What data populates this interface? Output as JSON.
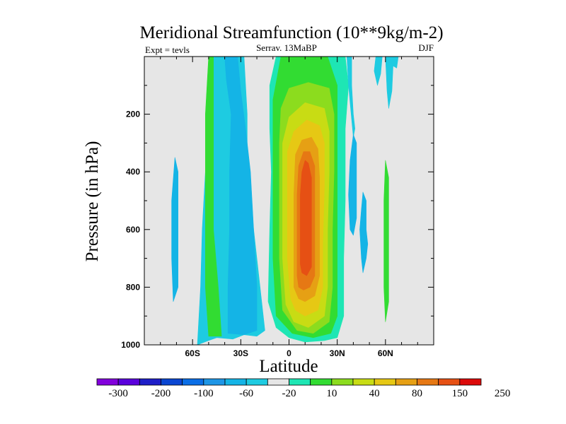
{
  "chart_data": {
    "type": "filled-contour",
    "title": "Meridional Streamfunction (10**9kg/m-2)",
    "subtitle_left": "Expt = tevls",
    "subtitle_center": "Serrav.  13MaBP",
    "subtitle_right": "DJF",
    "xlabel": "Latitude",
    "ylabel": "Pressure (in hPa)",
    "xlim": [
      -90,
      90
    ],
    "ylim": [
      1000,
      0
    ],
    "xticks": [
      {
        "value": -60,
        "label": "60S"
      },
      {
        "value": -30,
        "label": "30S"
      },
      {
        "value": 0,
        "label": "0"
      },
      {
        "value": 30,
        "label": "30N"
      },
      {
        "value": 60,
        "label": "60N"
      }
    ],
    "yticks": [
      {
        "value": 200,
        "label": "200"
      },
      {
        "value": 400,
        "label": "400"
      },
      {
        "value": 600,
        "label": "600"
      },
      {
        "value": 800,
        "label": "800"
      },
      {
        "value": 1000,
        "label": "1000"
      }
    ],
    "background_color": "#e6e6e6",
    "colorbar": {
      "labels": [
        "-300",
        "-200",
        "-100",
        "-60",
        "-20",
        "10",
        "40",
        "80",
        "150",
        "250"
      ],
      "colors": [
        "#8200dc",
        "#5a00dc",
        "#1e1ec8",
        "#0a46d2",
        "#0a6ee6",
        "#1e96e6",
        "#14b4e6",
        "#1ecbe1",
        "#e6e6e6",
        "#1ee6b4",
        "#32dc32",
        "#8cdc1e",
        "#c8dc14",
        "#e6c814",
        "#e6a014",
        "#e67814",
        "#e65014",
        "#dc0a0a"
      ]
    },
    "contours": [
      {
        "name": "ssh-cyan-cell",
        "color": "#1ecbe1",
        "points": [
          [
            -57,
            1000
          ],
          [
            -55,
            800
          ],
          [
            -54,
            600
          ],
          [
            -52,
            400
          ],
          [
            -50,
            200
          ],
          [
            -50,
            0
          ],
          [
            -28,
            0
          ],
          [
            -26,
            200
          ],
          [
            -26,
            400
          ],
          [
            -22,
            600
          ],
          [
            -18,
            800
          ],
          [
            -15,
            950
          ],
          [
            -20,
            970
          ],
          [
            -28,
            965
          ],
          [
            -35,
            980
          ],
          [
            -45,
            975
          ],
          [
            -50,
            985
          ]
        ]
      },
      {
        "name": "ssh-blue-cell",
        "color": "#14b4e6",
        "points": [
          [
            -38,
            960
          ],
          [
            -38,
            800
          ],
          [
            -37,
            600
          ],
          [
            -37,
            400
          ],
          [
            -36,
            200
          ],
          [
            -39,
            80
          ],
          [
            -40,
            0
          ],
          [
            -32,
            0
          ],
          [
            -30,
            120
          ],
          [
            -27,
            250
          ],
          [
            -24,
            400
          ],
          [
            -22,
            600
          ],
          [
            -20,
            800
          ],
          [
            -20,
            950
          ],
          [
            -28,
            965
          ]
        ]
      },
      {
        "name": "sh-green-band",
        "color": "#32dc32",
        "points": [
          [
            -50,
            970
          ],
          [
            -52,
            800
          ],
          [
            -52,
            600
          ],
          [
            -52,
            400
          ],
          [
            -52,
            200
          ],
          [
            -50,
            0
          ],
          [
            -47,
            0
          ],
          [
            -47,
            200
          ],
          [
            -47,
            400
          ],
          [
            -47,
            600
          ],
          [
            -44,
            800
          ],
          [
            -42,
            970
          ]
        ]
      },
      {
        "name": "sh-cyan-sliver",
        "color": "#14b4e6",
        "points": [
          [
            -72,
            850
          ],
          [
            -73,
            700
          ],
          [
            -73,
            500
          ],
          [
            -71,
            350
          ],
          [
            -69,
            400
          ],
          [
            -69,
            600
          ],
          [
            -69,
            800
          ]
        ]
      },
      {
        "name": "hadley-10",
        "color": "#1ee6b4",
        "points": [
          [
            -13,
            850
          ],
          [
            -12,
            600
          ],
          [
            -11,
            400
          ],
          [
            -12,
            250
          ],
          [
            -12,
            100
          ],
          [
            -8,
            0
          ],
          [
            35,
            0
          ],
          [
            37,
            100
          ],
          [
            35,
            250
          ],
          [
            35,
            500
          ],
          [
            34,
            700
          ],
          [
            34,
            900
          ],
          [
            30,
            975
          ],
          [
            22,
            985
          ],
          [
            10,
            990
          ],
          [
            0,
            975
          ],
          [
            -8,
            940
          ]
        ]
      },
      {
        "name": "hadley-40",
        "color": "#32dc32",
        "points": [
          [
            -8,
            900
          ],
          [
            -10,
            700
          ],
          [
            -10,
            500
          ],
          [
            -10,
            300
          ],
          [
            -10,
            150
          ],
          [
            -5,
            0
          ],
          [
            24,
            0
          ],
          [
            30,
            100
          ],
          [
            30,
            300
          ],
          [
            30,
            500
          ],
          [
            30,
            700
          ],
          [
            30,
            900
          ],
          [
            26,
            960
          ],
          [
            15,
            975
          ],
          [
            2,
            960
          ]
        ]
      },
      {
        "name": "hadley-80",
        "color": "#8cdc1e",
        "points": [
          [
            -4,
            880
          ],
          [
            -6,
            700
          ],
          [
            -6,
            500
          ],
          [
            -6,
            300
          ],
          [
            -5,
            180
          ],
          [
            0,
            110
          ],
          [
            12,
            90
          ],
          [
            25,
            110
          ],
          [
            28,
            200
          ],
          [
            28,
            400
          ],
          [
            27,
            600
          ],
          [
            27,
            800
          ],
          [
            25,
            920
          ],
          [
            15,
            960
          ],
          [
            5,
            950
          ]
        ]
      },
      {
        "name": "hadley-120",
        "color": "#c8dc14",
        "points": [
          [
            -2,
            860
          ],
          [
            -4,
            700
          ],
          [
            -4,
            500
          ],
          [
            -4,
            300
          ],
          [
            0,
            210
          ],
          [
            10,
            160
          ],
          [
            22,
            180
          ],
          [
            25,
            260
          ],
          [
            25,
            400
          ],
          [
            24,
            600
          ],
          [
            24,
            800
          ],
          [
            22,
            900
          ],
          [
            12,
            940
          ],
          [
            3,
            920
          ]
        ]
      },
      {
        "name": "hadley-150",
        "color": "#e6c814",
        "points": [
          [
            1,
            840
          ],
          [
            -1,
            700
          ],
          [
            -1,
            500
          ],
          [
            -1,
            330
          ],
          [
            3,
            260
          ],
          [
            11,
            220
          ],
          [
            19,
            240
          ],
          [
            22,
            300
          ],
          [
            22,
            450
          ],
          [
            21,
            650
          ],
          [
            21,
            800
          ],
          [
            18,
            880
          ],
          [
            10,
            900
          ],
          [
            4,
            880
          ]
        ]
      },
      {
        "name": "hadley-200",
        "color": "#e6a014",
        "points": [
          [
            3,
            800
          ],
          [
            3,
            650
          ],
          [
            3,
            480
          ],
          [
            4,
            340
          ],
          [
            8,
            290
          ],
          [
            14,
            280
          ],
          [
            18,
            320
          ],
          [
            19,
            420
          ],
          [
            19,
            600
          ],
          [
            19,
            760
          ],
          [
            16,
            830
          ],
          [
            10,
            850
          ],
          [
            6,
            840
          ]
        ]
      },
      {
        "name": "hadley-250",
        "color": "#e67814",
        "points": [
          [
            5,
            760
          ],
          [
            5,
            620
          ],
          [
            5,
            480
          ],
          [
            6,
            380
          ],
          [
            9,
            330
          ],
          [
            13,
            330
          ],
          [
            16,
            380
          ],
          [
            16,
            500
          ],
          [
            16,
            650
          ],
          [
            16,
            760
          ],
          [
            13,
            800
          ],
          [
            9,
            810
          ],
          [
            6,
            800
          ]
        ]
      },
      {
        "name": "hadley-300",
        "color": "#e65014",
        "points": [
          [
            7,
            720
          ],
          [
            7,
            600
          ],
          [
            7,
            480
          ],
          [
            8,
            400
          ],
          [
            10,
            360
          ],
          [
            12,
            370
          ],
          [
            14,
            420
          ],
          [
            14,
            520
          ],
          [
            14,
            650
          ],
          [
            14,
            730
          ],
          [
            11,
            760
          ],
          [
            8,
            750
          ]
        ]
      },
      {
        "name": "nh-cyan-upper",
        "color": "#1ecbe1",
        "points": [
          [
            36,
            0
          ],
          [
            37,
            100
          ],
          [
            39,
            220
          ],
          [
            40,
            280
          ],
          [
            41,
            250
          ],
          [
            40,
            200
          ],
          [
            39,
            100
          ],
          [
            39,
            0
          ]
        ]
      },
      {
        "name": "nh-blue-blob-1",
        "color": "#14b4e6",
        "points": [
          [
            37,
            480
          ],
          [
            38,
            360
          ],
          [
            40,
            270
          ],
          [
            42,
            300
          ],
          [
            42,
            420
          ],
          [
            42,
            560
          ],
          [
            40,
            620
          ],
          [
            38,
            600
          ]
        ]
      },
      {
        "name": "nh-blue-blob-2",
        "color": "#14b4e6",
        "points": [
          [
            44,
            600
          ],
          [
            45,
            530
          ],
          [
            46,
            470
          ],
          [
            48,
            500
          ],
          [
            48,
            600
          ],
          [
            49,
            650
          ],
          [
            48,
            700
          ],
          [
            46,
            750
          ],
          [
            45,
            700
          ]
        ]
      },
      {
        "name": "nh-green-sliver",
        "color": "#32dc32",
        "points": [
          [
            60,
            920
          ],
          [
            59,
            800
          ],
          [
            59,
            650
          ],
          [
            59,
            500
          ],
          [
            60,
            360
          ],
          [
            62,
            420
          ],
          [
            62,
            550
          ],
          [
            62,
            700
          ],
          [
            62,
            850
          ]
        ]
      },
      {
        "name": "nh-cyan-upper-right",
        "color": "#1ecbe1",
        "points": [
          [
            54,
            0
          ],
          [
            53,
            50
          ],
          [
            55,
            100
          ],
          [
            57,
            60
          ],
          [
            58,
            0
          ]
        ]
      },
      {
        "name": "nh-cyan-streak",
        "color": "#1ecbe1",
        "points": [
          [
            60,
            0
          ],
          [
            61,
            120
          ],
          [
            62,
            180
          ],
          [
            64,
            120
          ],
          [
            65,
            0
          ]
        ]
      },
      {
        "name": "nh-cyan-corner",
        "color": "#1ecbe1",
        "points": [
          [
            64,
            0
          ],
          [
            64,
            30
          ],
          [
            67,
            40
          ],
          [
            68,
            0
          ]
        ]
      }
    ]
  }
}
